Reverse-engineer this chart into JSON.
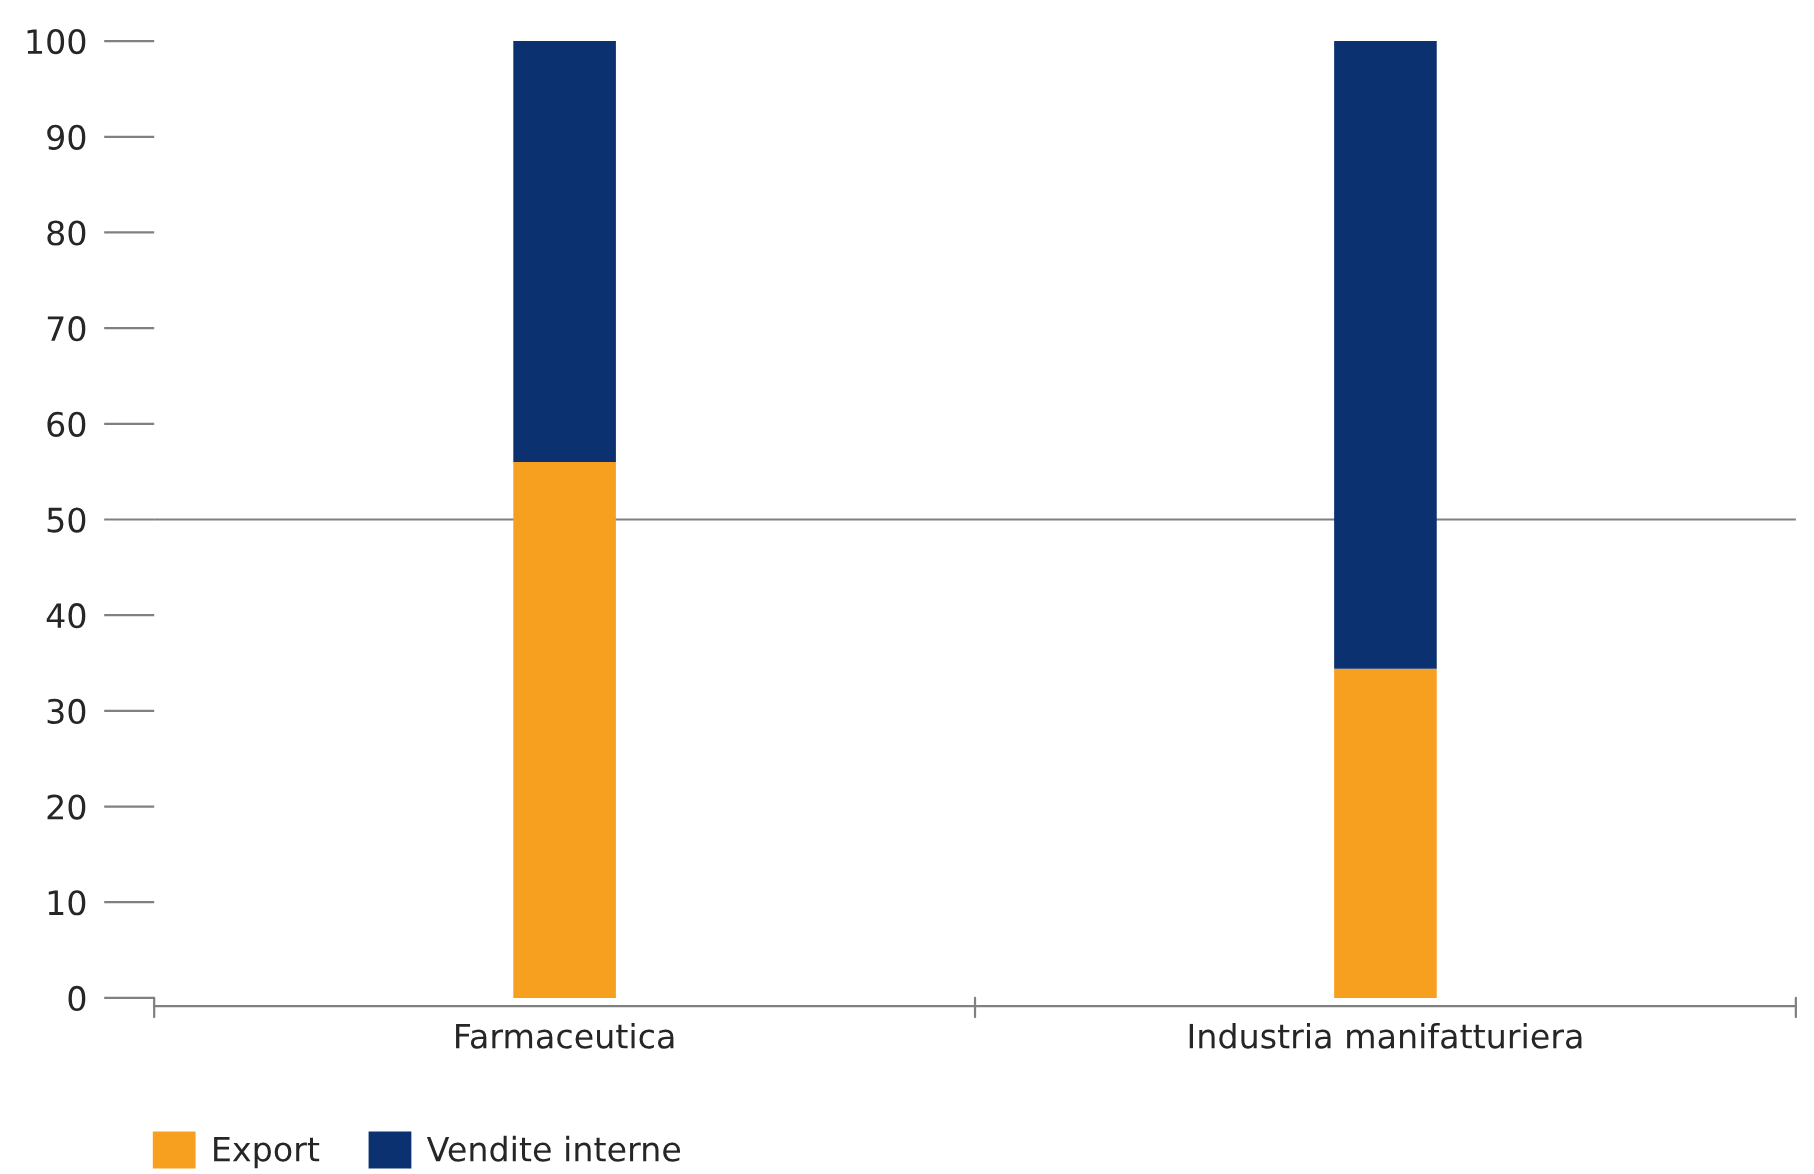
{
  "chart_data": {
    "type": "bar",
    "stacked": true,
    "categories": [
      "Farmaceutica",
      "Industria manifatturiera"
    ],
    "series": [
      {
        "name": "Export",
        "color": "#f7a01f",
        "values": [
          56,
          34.4
        ]
      },
      {
        "name": "Vendite interne",
        "color": "#0b3170",
        "values": [
          44,
          65.6
        ]
      }
    ],
    "ylim": [
      0,
      100
    ],
    "yticks": [
      0,
      10,
      20,
      30,
      40,
      50,
      60,
      70,
      80,
      90,
      100
    ],
    "ref_lines": [
      {
        "axis": "y",
        "value": 50,
        "color": "#808080"
      }
    ],
    "grid": false,
    "legend": "bottom left"
  }
}
